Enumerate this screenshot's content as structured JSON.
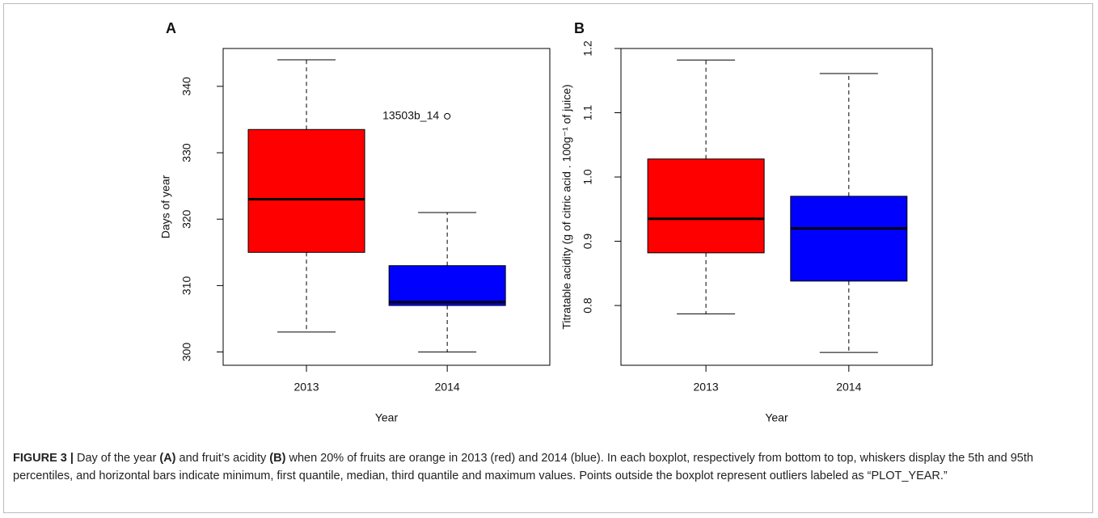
{
  "chart_data": [
    {
      "type": "box",
      "panel_label": "A",
      "ylabel": "Days of year",
      "xlabel": "Year",
      "categories": [
        "2013",
        "2014"
      ],
      "boxes": [
        {
          "whisker_low": 303,
          "q1": 315,
          "median": 323,
          "q3": 333.5,
          "whisker_high": 344,
          "color": "#ff0000"
        },
        {
          "whisker_low": 300,
          "q1": 307,
          "median": 307.5,
          "q3": 313,
          "whisker_high": 321,
          "color": "#0000ff"
        }
      ],
      "outliers": [
        {
          "x": "2014",
          "y": 335.5,
          "label": "13503b_14"
        }
      ],
      "ylim": [
        298,
        345.7
      ],
      "yticks": [
        300,
        310,
        320,
        330,
        340
      ]
    },
    {
      "type": "box",
      "panel_label": "B",
      "ylabel": "Titratable acidity (g of citric acid . 100g⁻¹ of juice)",
      "xlabel": "Year",
      "categories": [
        "2013",
        "2014"
      ],
      "boxes": [
        {
          "whisker_low": 0.787,
          "q1": 0.882,
          "median": 0.935,
          "q3": 1.028,
          "whisker_high": 1.182,
          "color": "#ff0000"
        },
        {
          "whisker_low": 0.727,
          "q1": 0.838,
          "median": 0.92,
          "q3": 0.97,
          "whisker_high": 1.161,
          "color": "#0000ff"
        }
      ],
      "outliers": [],
      "ylim": [
        0.707,
        1.2
      ],
      "yticks": [
        0.8,
        0.9,
        {
          "value": 1,
          "label": "1.0"
        },
        1.1,
        1.2
      ]
    }
  ],
  "caption": {
    "label": "FIGURE 3 |",
    "parts": [
      " Day of the year ",
      "(A)",
      " and fruit’s acidity ",
      "(B)",
      " when 20% of fruits are orange in 2013 (red) and 2014 (blue). In each boxplot, respectively from bottom to top, whiskers display the 5th and 95th percentiles, and horizontal bars indicate minimum, first quantile, median, third quantile and maximum values. Points outside the boxplot represent outliers labeled as “PLOT_YEAR.”"
    ]
  }
}
